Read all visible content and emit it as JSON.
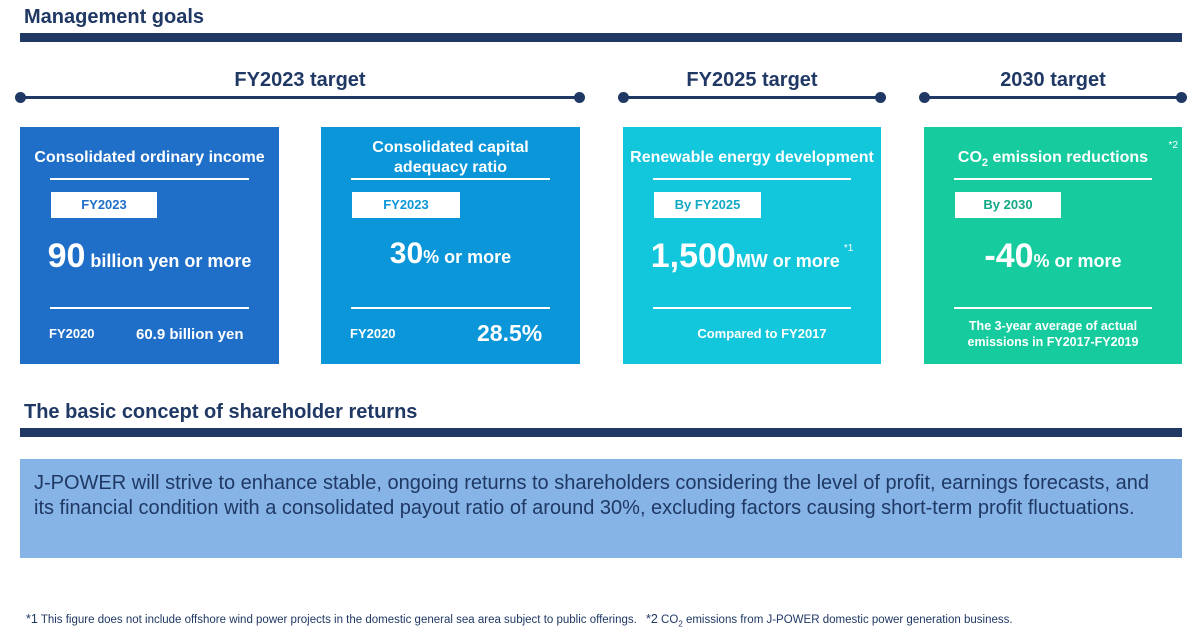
{
  "header": {
    "title": "Management goals"
  },
  "periods": {
    "fy2023": "FY2023 target",
    "fy2025": "FY2025 target",
    "y2030": "2030 target"
  },
  "cards": [
    {
      "title": "Consolidated ordinary income",
      "tag": "FY2023",
      "big": "90",
      "unit": " billion yen or more",
      "foot_left": "FY2020",
      "foot_right": "60.9 billion yen",
      "color": "#1f6ec8"
    },
    {
      "title": "Consolidated capital adequacy ratio",
      "tag": "FY2023",
      "big": "30",
      "unit": "% or more",
      "foot_left": "FY2020",
      "foot_right": "28.5%",
      "color": "#0a96d8"
    },
    {
      "title": "Renewable energy development",
      "tag": "By FY2025",
      "big": "1,500",
      "unit": "MW or more",
      "note": "*1",
      "foot": "Compared to FY2017",
      "color": "#12c6dc"
    },
    {
      "title_main": "CO",
      "title_sub": "2",
      "title_rest": " emission reductions",
      "note": "*2",
      "tag": "By 2030",
      "big": "-40",
      "unit": "% or more",
      "foot_line1": "The 3-year average of actual",
      "foot_line2": "emissions in FY2017-FY2019",
      "color": "#16cc9f"
    }
  ],
  "shareholder": {
    "title": "The basic concept of shareholder returns",
    "body": "J-POWER will strive to enhance stable, ongoing returns to shareholders considering the level of profit, earnings forecasts, and its financial condition with a consolidated payout ratio of around 30%, excluding factors causing short-term profit fluctuations."
  },
  "footnotes": {
    "mark1": "*1",
    "text1": " This figure does not include offshore wind power projects in the domestic general sea area subject to public offerings.",
    "mark2": "*2",
    "text2a": " CO",
    "text2sub": "2",
    "text2b": " emissions from J-POWER domestic power generation business."
  }
}
